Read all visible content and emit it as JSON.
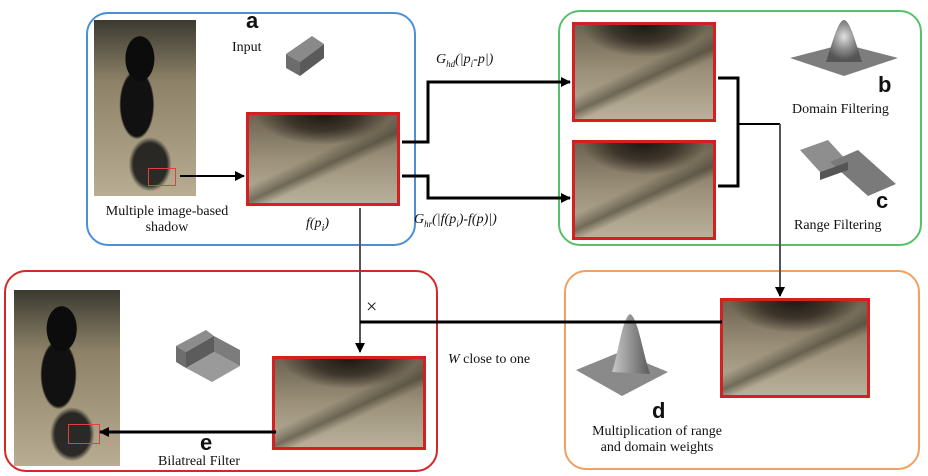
{
  "panels": {
    "a": {
      "letter": "a",
      "input_label": "Input",
      "caption_line1": "Multiple image-based",
      "caption_line2": "shadow",
      "func_label": "f(p",
      "func_sub": "i",
      "func_close": ")"
    },
    "bc": {
      "letter_b": "b",
      "letter_c": "c",
      "domain_label": "Domain Filtering",
      "range_label": "Range Filtering"
    },
    "d": {
      "letter": "d",
      "caption_line1": "Multiplication of range",
      "caption_line2": "and domain weights"
    },
    "e": {
      "letter": "e",
      "caption": "Bilatreal Filter"
    }
  },
  "arrows": {
    "domain_kernel": {
      "g": "G",
      "sub": "hd",
      "expr": "(|p",
      "sub2": "i",
      "expr2": "-p|)"
    },
    "range_kernel": {
      "g": "G",
      "sub": "hr",
      "expr": "(|f(p",
      "sub2": "i",
      "expr2": ")-f(p)|)"
    },
    "weight_label_italic": "W",
    "weight_label_rest": " close to one",
    "multiply_symbol": "×"
  }
}
